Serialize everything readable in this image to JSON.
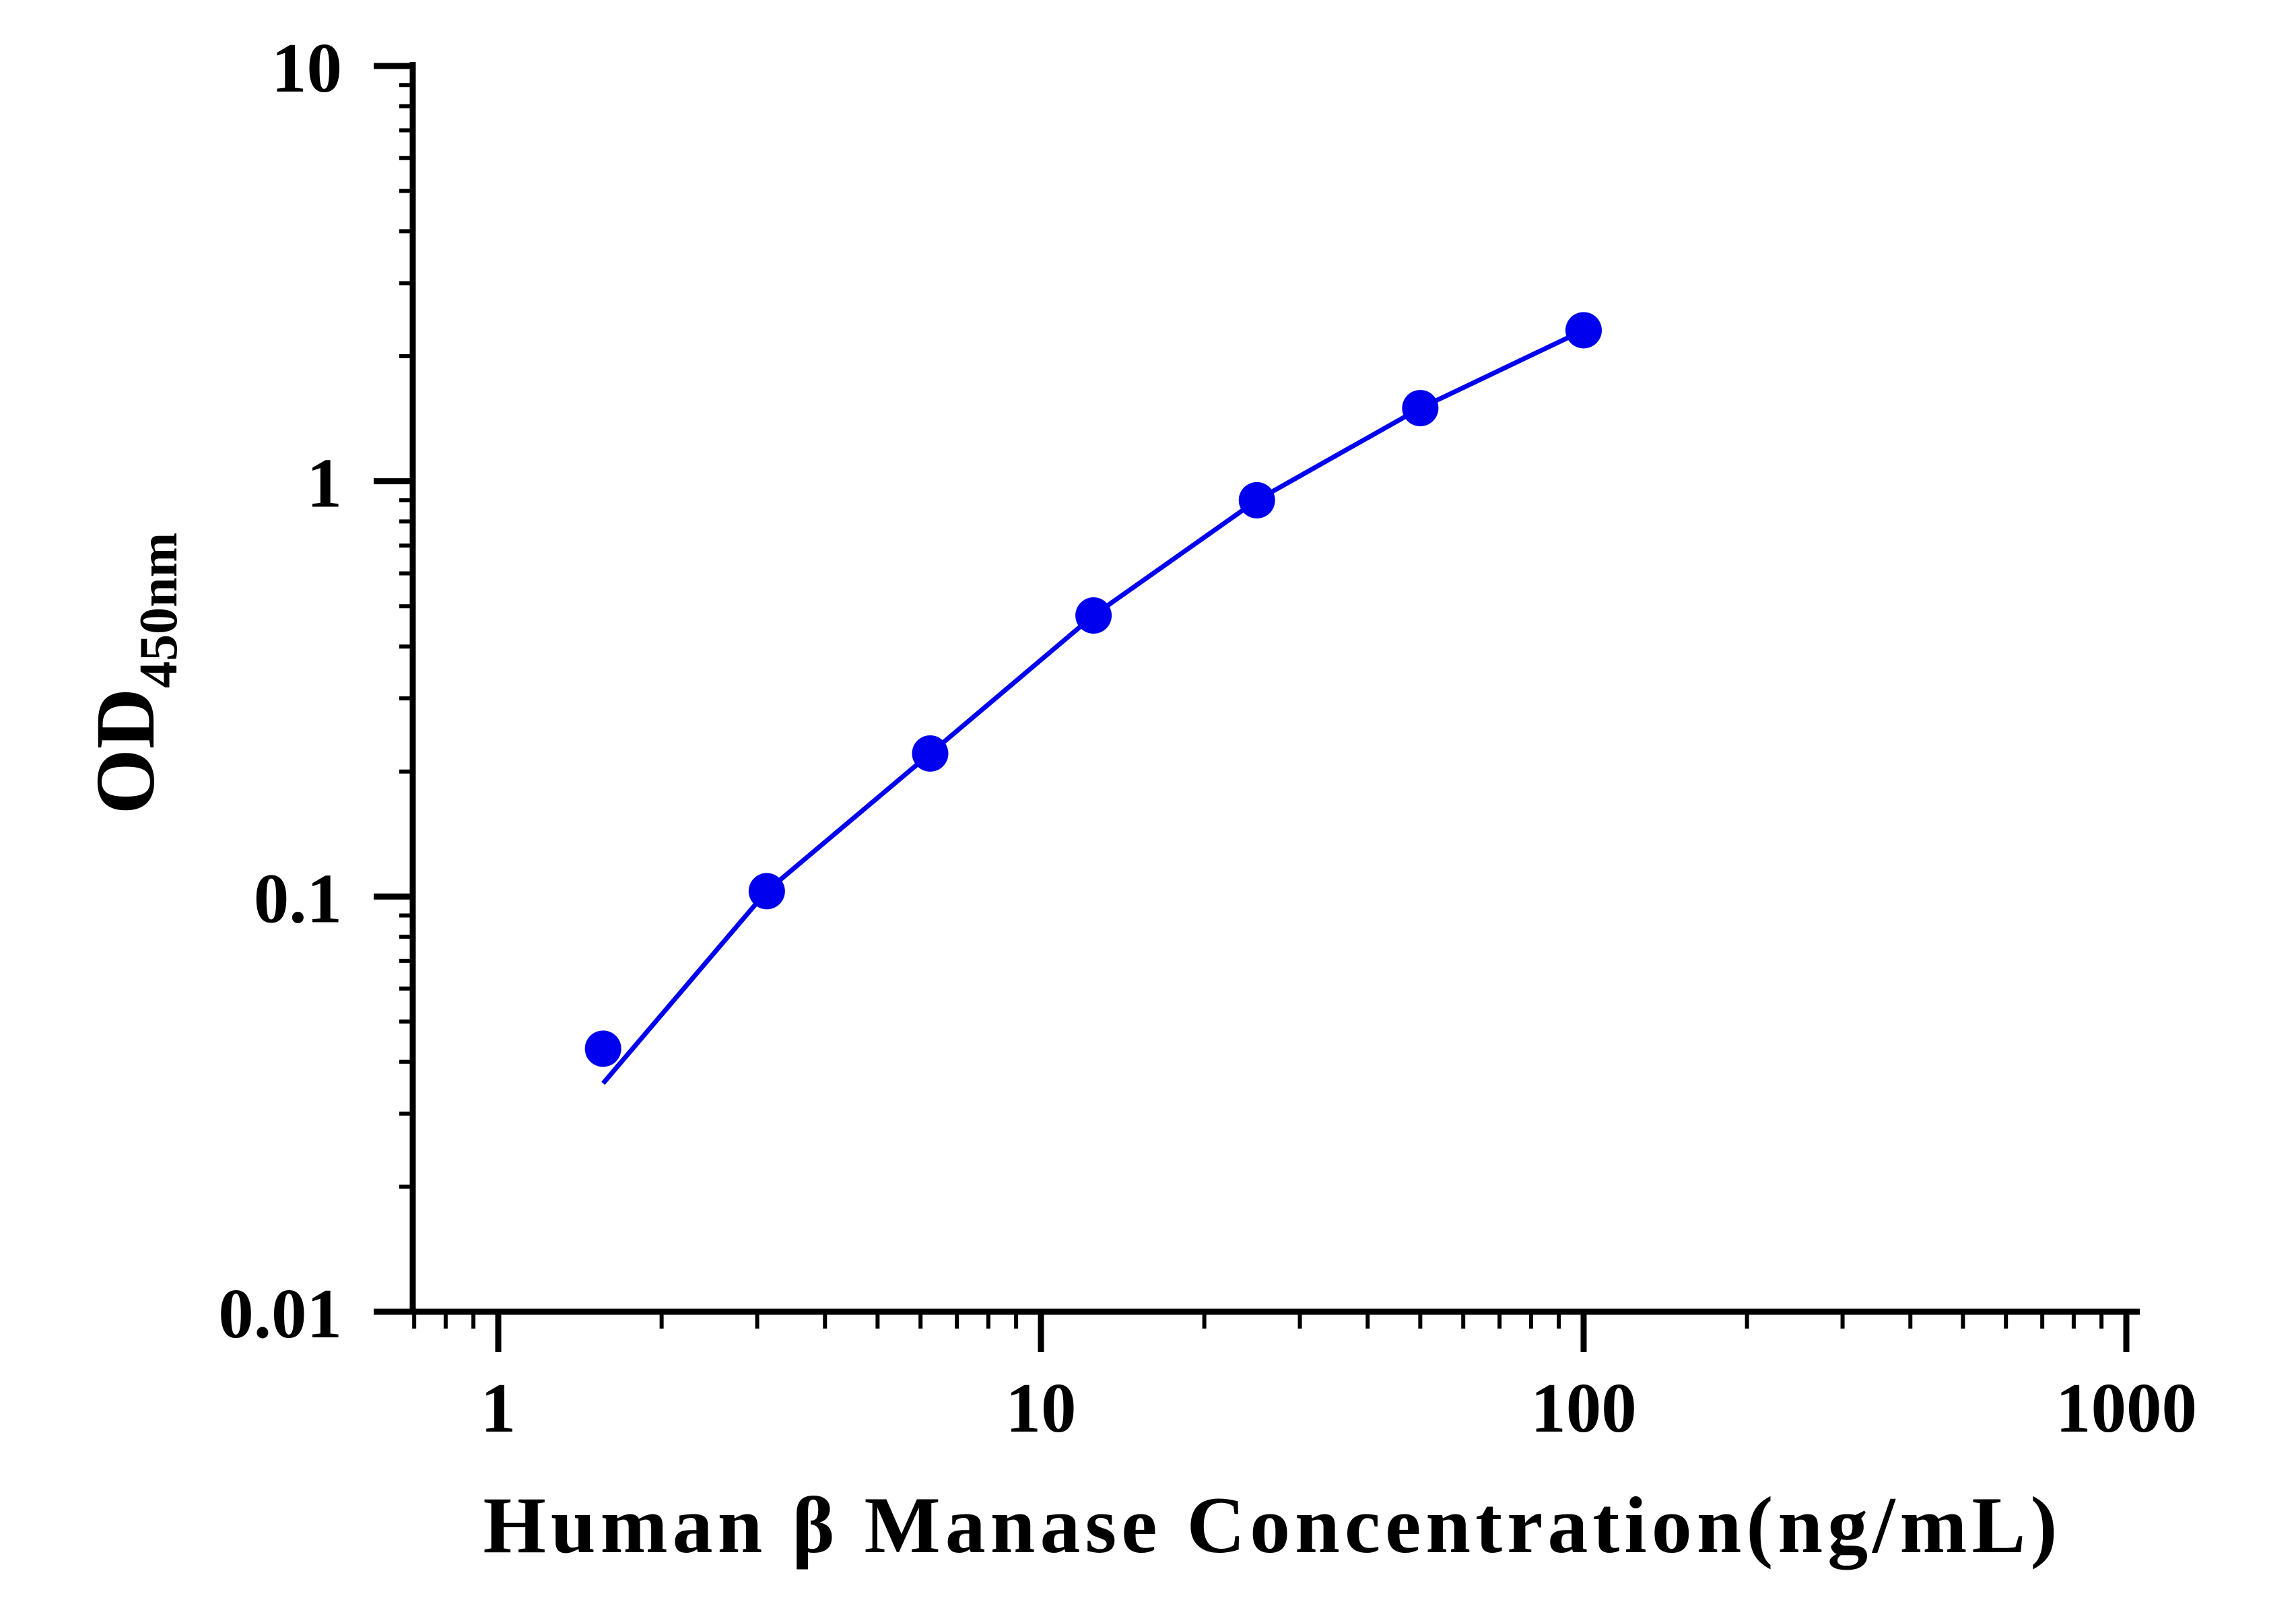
{
  "chart_data": {
    "type": "line",
    "title": "",
    "xlabel": "Human β Manase Concentration(ng/mL)",
    "ylabel": {
      "main": "OD",
      "sub": "450nm"
    },
    "x_scale": "log",
    "y_scale": "log",
    "xlim": [
      0.7,
      1000
    ],
    "ylim": [
      0.01,
      10
    ],
    "x_ticks": [
      1,
      10,
      100,
      1000
    ],
    "x_tick_labels": [
      "1",
      "10",
      "100",
      "1000"
    ],
    "y_ticks": [
      0.01,
      0.1,
      1,
      10
    ],
    "y_tick_labels": [
      "0.01",
      "0.1",
      "1",
      "10"
    ],
    "grid": false,
    "legend": "none",
    "series": [
      {
        "x": [
          1.56,
          3.125,
          6.25,
          12.5,
          25,
          50,
          100
        ],
        "y": [
          0.043,
          0.103,
          0.221,
          0.475,
          0.9,
          1.5,
          2.31
        ],
        "color": "#0000ee",
        "marker": "circle"
      }
    ]
  }
}
